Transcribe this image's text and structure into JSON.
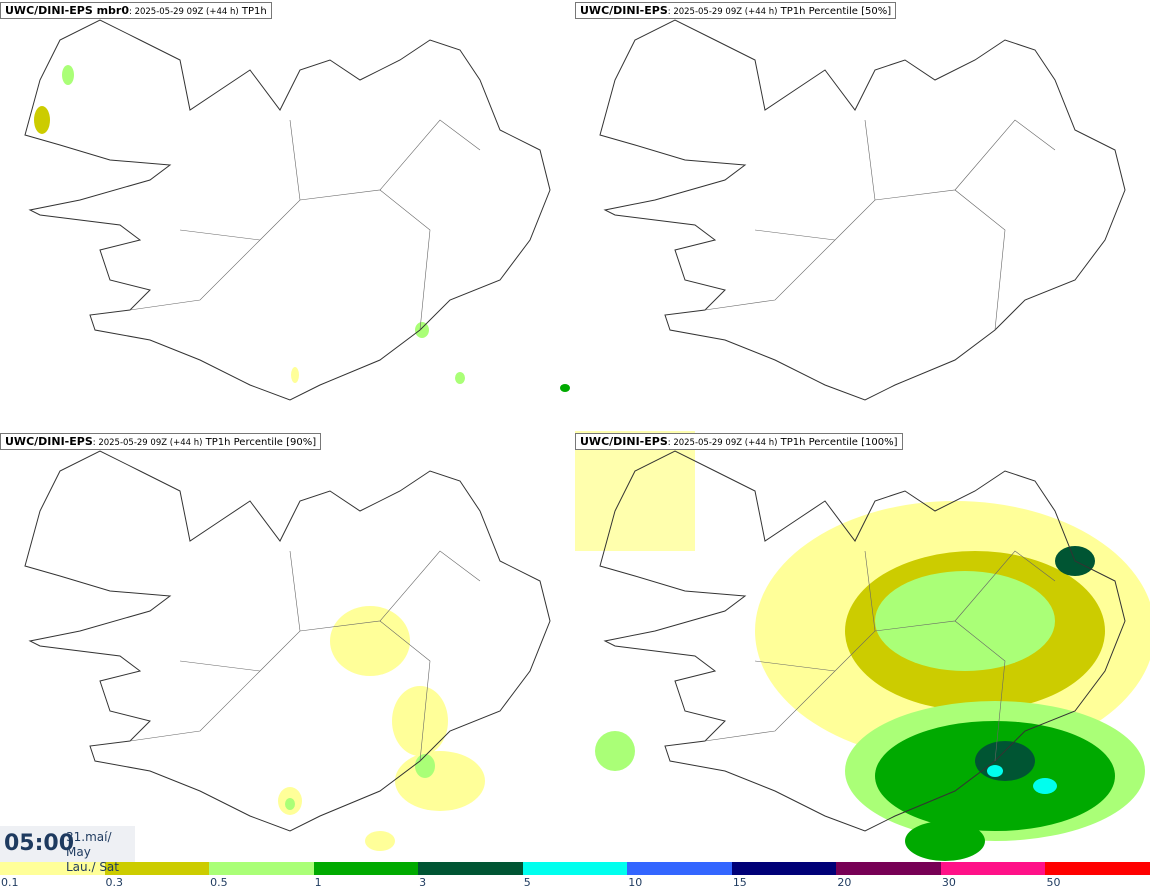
{
  "panels": [
    {
      "model": "UWC/DINI-EPS mbr0",
      "run": ": 2025-05-29 09Z (+44 h)",
      "field": "TP1h"
    },
    {
      "model": "UWC/DINI-EPS",
      "run": ": 2025-05-29 09Z (+44 h)",
      "field": "TP1h Percentile [50%]"
    },
    {
      "model": "UWC/DINI-EPS",
      "run": ": 2025-05-29 09Z (+44 h)",
      "field": "TP1h Percentile [90%]"
    },
    {
      "model": "UWC/DINI-EPS",
      "run": ": 2025-05-29 09Z (+44 h)",
      "field": "TP1h Percentile [100%]"
    }
  ],
  "valid": {
    "time": "05:00",
    "date": "31.maí/ May",
    "day": "Lau./ Sat"
  },
  "colorbar": {
    "labels": [
      "0.1",
      "0.3",
      "0.5",
      "1",
      "3",
      "5",
      "10",
      "15",
      "20",
      "30",
      "50"
    ],
    "colors": [
      "#ffff99",
      "#cccc00",
      "#aaff77",
      "#00aa00",
      "#005533",
      "#00ffee",
      "#3366ff",
      "#000077",
      "#770055",
      "#ff1188",
      "#ff0000"
    ]
  }
}
